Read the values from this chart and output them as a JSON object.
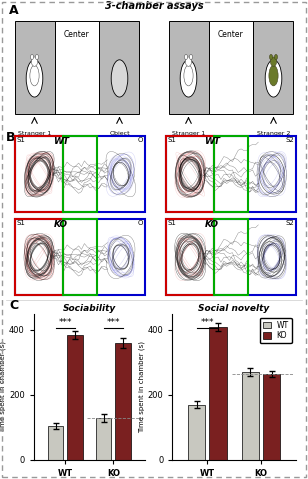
{
  "title_A": "3-chamber assays",
  "panel_C_left_title": "Sociability",
  "panel_C_right_title": "Social novelty",
  "ylabel_C": "Time spent in chamber (s)",
  "sociability": {
    "WT": {
      "s1": 105,
      "obj": 385,
      "s1_err": 10,
      "obj_err": 13
    },
    "KO": {
      "s1": 130,
      "obj": 360,
      "s1_err": 12,
      "obj_err": 15
    }
  },
  "social_novelty": {
    "WT": {
      "s1": 170,
      "s2": 410,
      "s1_err": 10,
      "s2_err": 13
    },
    "KO": {
      "s1": 270,
      "s2": 265,
      "s1_err": 12,
      "s2_err": 10
    }
  },
  "bar_color_light": "#c8c8c0",
  "bar_color_dark": "#7a2020",
  "outer_border_color": "#aaaaaa"
}
